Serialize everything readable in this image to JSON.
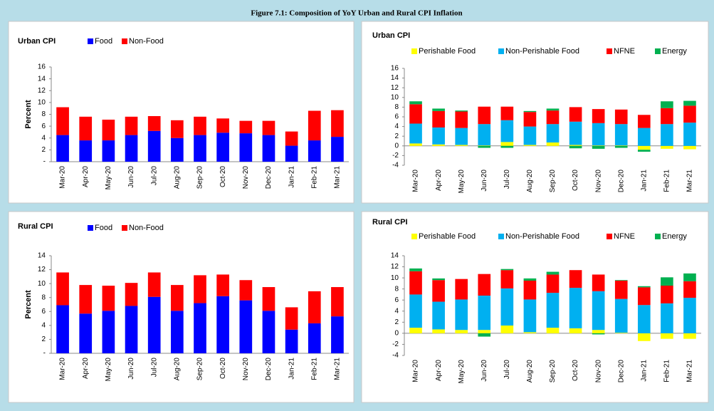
{
  "figure_title": "Figure 7.1: Composition of YoY Urban and Rural CPI Inflation",
  "chart_data": [
    {
      "type": "stacked_bar",
      "title": "Urban CPI",
      "y_label": "Percent",
      "categories": [
        "Mar-20",
        "Apr-20",
        "May-20",
        "Jun-20",
        "Jul-20",
        "Aug-20",
        "Sep-20",
        "Oct-20",
        "Nov-20",
        "Dec-20",
        "Jan-21",
        "Feb-21",
        "Mar-21"
      ],
      "series": [
        {
          "name": "Food",
          "color": "#0000ff",
          "values": [
            4.5,
            3.6,
            3.6,
            4.5,
            5.2,
            4.0,
            4.5,
            4.9,
            4.8,
            4.5,
            2.7,
            3.6,
            4.2
          ]
        },
        {
          "name": "Non-Food",
          "color": "#ff0000",
          "values": [
            4.7,
            4.0,
            3.5,
            3.1,
            2.5,
            3.0,
            3.1,
            2.4,
            2.1,
            2.4,
            2.4,
            5.0,
            4.5
          ]
        }
      ],
      "ylim": [
        0,
        16
      ],
      "yticks": [
        {
          "value": 0,
          "label": "-"
        },
        2,
        4,
        6,
        8,
        10,
        12,
        14,
        16
      ]
    },
    {
      "type": "stacked_bar",
      "title": "Urban CPI",
      "categories": [
        "Mar-20",
        "Apr-20",
        "May-20",
        "Jun-20",
        "Jul-20",
        "Aug-20",
        "Sep-20",
        "Oct-20",
        "Nov-20",
        "Dec-20",
        "Jan-21",
        "Feb-21",
        "Mar-21"
      ],
      "series": [
        {
          "name": "Perishable Food",
          "color": "#ffff00",
          "values": [
            0.5,
            0.3,
            0.2,
            0.1,
            0.8,
            0.2,
            0.7,
            0.2,
            0.1,
            0.1,
            -0.8,
            -0.6,
            -0.7
          ]
        },
        {
          "name": "Non-Perishable Food",
          "color": "#00b0f0",
          "values": [
            4.1,
            3.5,
            3.5,
            4.4,
            4.5,
            3.8,
            3.8,
            4.8,
            4.6,
            4.4,
            3.7,
            4.5,
            4.8
          ]
        },
        {
          "name": "NFNE",
          "color": "#ff0000",
          "values": [
            4.0,
            3.4,
            3.4,
            3.6,
            2.8,
            3.0,
            2.8,
            3.0,
            2.9,
            3.0,
            2.7,
            3.3,
            3.5
          ]
        },
        {
          "name": "Energy",
          "color": "#00b050",
          "values": [
            0.6,
            0.5,
            0.2,
            -0.4,
            -0.4,
            0.2,
            0.4,
            -0.5,
            -0.6,
            -0.4,
            -0.4,
            1.4,
            1.0
          ]
        }
      ],
      "ylim": [
        -4,
        16
      ],
      "yticks": [
        -4,
        -2,
        0,
        2,
        4,
        6,
        8,
        10,
        12,
        14,
        16
      ]
    },
    {
      "type": "stacked_bar",
      "title": "Rural CPI",
      "y_label": "Percent",
      "categories": [
        "Mar-20",
        "Apr-20",
        "May-20",
        "Jun-20",
        "Jul-20",
        "Aug-20",
        "Sep-20",
        "Oct-20",
        "Nov-20",
        "Dec-20",
        "Jan-21",
        "Feb-21",
        "Mar-21"
      ],
      "series": [
        {
          "name": "Food",
          "color": "#0000ff",
          "values": [
            6.9,
            5.7,
            6.1,
            6.8,
            8.1,
            6.1,
            7.2,
            8.2,
            7.6,
            6.1,
            3.4,
            4.3,
            5.3
          ]
        },
        {
          "name": "Non-Food",
          "color": "#ff0000",
          "values": [
            4.7,
            4.1,
            3.6,
            3.3,
            3.5,
            3.7,
            4.0,
            3.1,
            2.9,
            3.4,
            3.2,
            4.6,
            4.2
          ]
        }
      ],
      "ylim": [
        0,
        14
      ],
      "yticks": [
        {
          "value": 0,
          "label": "-"
        },
        2,
        4,
        6,
        8,
        10,
        12,
        14
      ]
    },
    {
      "type": "stacked_bar",
      "title": "Rural CPI",
      "categories": [
        "Mar-20",
        "Apr-20",
        "May-20",
        "Jun-20",
        "Jul-20",
        "Aug-20",
        "Sep-20",
        "Oct-20",
        "Nov-20",
        "Dec-20",
        "Jan-21",
        "Feb-21",
        "Mar-21"
      ],
      "series": [
        {
          "name": "Perishable Food",
          "color": "#ffff00",
          "values": [
            1.0,
            0.7,
            0.6,
            0.6,
            1.4,
            0.2,
            1.0,
            0.9,
            0.6,
            0.1,
            -1.4,
            -1.0,
            -1.0
          ]
        },
        {
          "name": "Non-Perishable Food",
          "color": "#00b0f0",
          "values": [
            6.0,
            5.0,
            5.5,
            6.2,
            6.7,
            5.9,
            6.3,
            7.3,
            7.0,
            6.1,
            5.1,
            5.4,
            6.4
          ]
        },
        {
          "name": "NFNE",
          "color": "#ff0000",
          "values": [
            4.2,
            3.9,
            3.7,
            3.9,
            3.3,
            3.4,
            3.3,
            3.2,
            3.0,
            3.3,
            3.2,
            3.2,
            3.0
          ]
        },
        {
          "name": "Energy",
          "color": "#00b050",
          "values": [
            0.5,
            0.3,
            0.0,
            -0.6,
            0.2,
            0.4,
            0.5,
            0.0,
            -0.2,
            0.1,
            0.2,
            1.5,
            1.4
          ]
        }
      ],
      "ylim": [
        -4,
        14
      ],
      "yticks": [
        -4,
        -2,
        0,
        2,
        4,
        6,
        8,
        10,
        12,
        14
      ]
    }
  ]
}
